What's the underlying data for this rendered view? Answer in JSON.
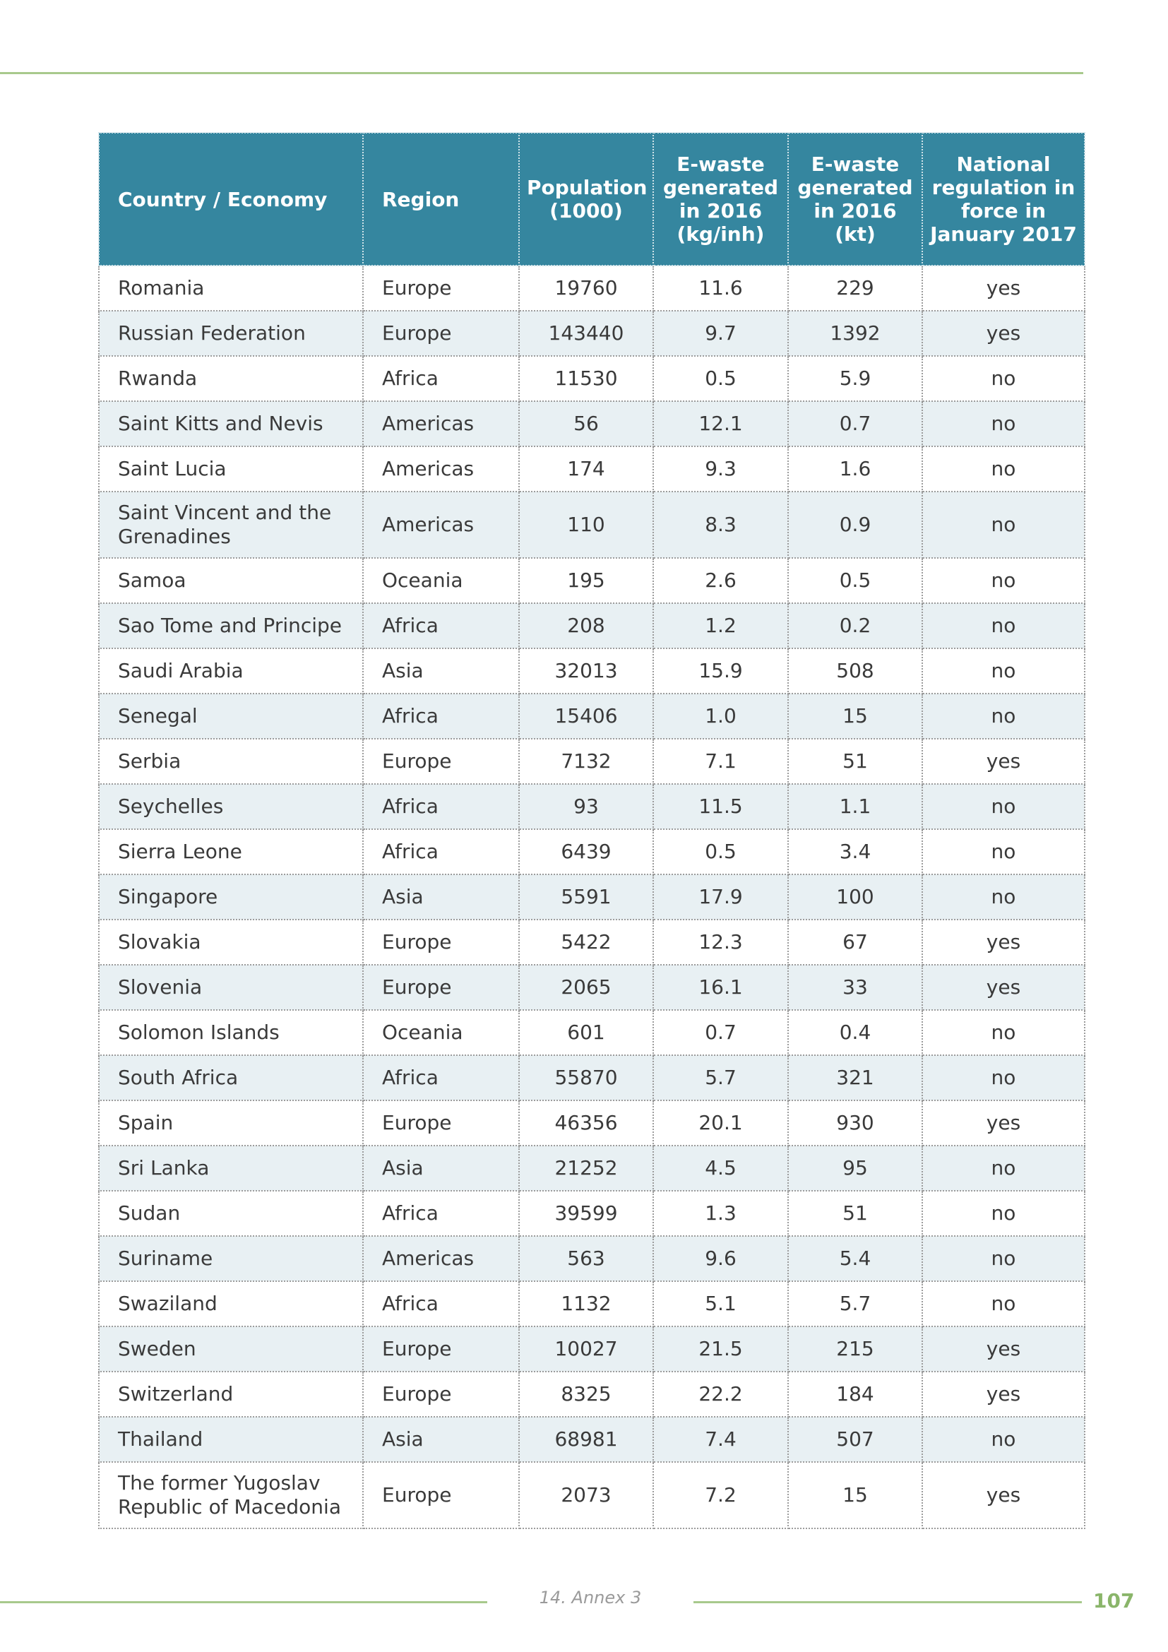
{
  "table": {
    "headers": [
      "Country / Economy",
      "Region",
      "Population (1000)",
      "E-waste generated in 2016 (kg/inh)",
      "E-waste generated in 2016 (kt)",
      "National regulation in force in January 2017"
    ],
    "rows": [
      [
        "Romania",
        "Europe",
        "19760",
        "11.6",
        "229",
        "yes"
      ],
      [
        "Russian Federation",
        "Europe",
        "143440",
        "9.7",
        "1392",
        "yes"
      ],
      [
        "Rwanda",
        "Africa",
        "11530",
        "0.5",
        "5.9",
        "no"
      ],
      [
        "Saint Kitts and Nevis",
        "Americas",
        "56",
        "12.1",
        "0.7",
        "no"
      ],
      [
        "Saint Lucia",
        "Americas",
        "174",
        "9.3",
        "1.6",
        "no"
      ],
      [
        "Saint Vincent and the Grenadines",
        "Americas",
        "110",
        "8.3",
        "0.9",
        "no"
      ],
      [
        "Samoa",
        "Oceania",
        "195",
        "2.6",
        "0.5",
        "no"
      ],
      [
        "Sao Tome and Principe",
        "Africa",
        "208",
        "1.2",
        "0.2",
        "no"
      ],
      [
        "Saudi Arabia",
        "Asia",
        "32013",
        "15.9",
        "508",
        "no"
      ],
      [
        "Senegal",
        "Africa",
        "15406",
        "1.0",
        "15",
        "no"
      ],
      [
        "Serbia",
        "Europe",
        "7132",
        "7.1",
        "51",
        "yes"
      ],
      [
        "Seychelles",
        "Africa",
        "93",
        "11.5",
        "1.1",
        "no"
      ],
      [
        "Sierra Leone",
        "Africa",
        "6439",
        "0.5",
        "3.4",
        "no"
      ],
      [
        "Singapore",
        "Asia",
        "5591",
        "17.9",
        "100",
        "no"
      ],
      [
        "Slovakia",
        "Europe",
        "5422",
        "12.3",
        "67",
        "yes"
      ],
      [
        "Slovenia",
        "Europe",
        "2065",
        "16.1",
        "33",
        "yes"
      ],
      [
        "Solomon Islands",
        "Oceania",
        "601",
        "0.7",
        "0.4",
        "no"
      ],
      [
        "South Africa",
        "Africa",
        "55870",
        "5.7",
        "321",
        "no"
      ],
      [
        "Spain",
        "Europe",
        "46356",
        "20.1",
        "930",
        "yes"
      ],
      [
        "Sri Lanka",
        "Asia",
        "21252",
        "4.5",
        "95",
        "no"
      ],
      [
        "Sudan",
        "Africa",
        "39599",
        "1.3",
        "51",
        "no"
      ],
      [
        "Suriname",
        "Americas",
        "563",
        "9.6",
        "5.4",
        "no"
      ],
      [
        "Swaziland",
        "Africa",
        "1132",
        "5.1",
        "5.7",
        "no"
      ],
      [
        "Sweden",
        "Europe",
        "10027",
        "21.5",
        "215",
        "yes"
      ],
      [
        "Switzerland",
        "Europe",
        "8325",
        "22.2",
        "184",
        "yes"
      ],
      [
        "Thailand",
        "Asia",
        "68981",
        "7.4",
        "507",
        "no"
      ],
      [
        "The former Yugoslav Republic of Macedonia",
        "Europe",
        "2073",
        "7.2",
        "15",
        "yes"
      ]
    ]
  },
  "footer": {
    "section": "14. Annex 3",
    "page_number": "107"
  },
  "colors": {
    "header_bg": "#35869f",
    "accent_green": "#a8c98c",
    "stripe": "#e8f0f3"
  }
}
